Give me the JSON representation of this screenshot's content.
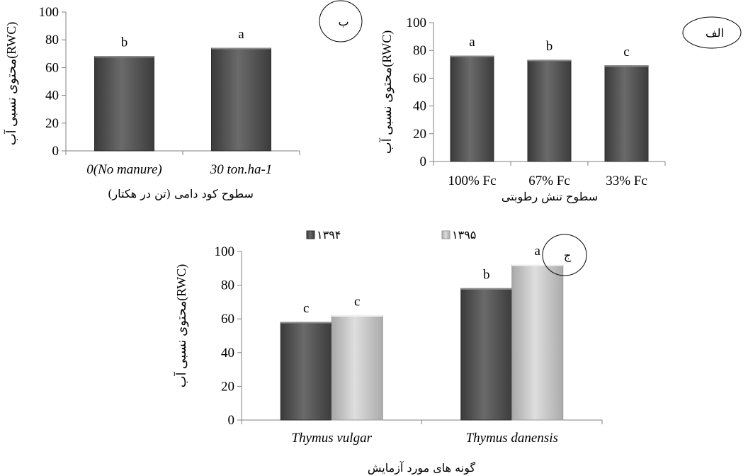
{
  "chart_data": [
    {
      "id": "b",
      "type": "bar",
      "badge": "ب",
      "categories": [
        "0(No manure)",
        "30 ton.ha-1"
      ],
      "values": [
        68,
        74
      ],
      "letters": [
        "b",
        "a"
      ],
      "xlabel": "سطوح کود دامی (تن در هکتار)",
      "ylabel": "محتوی نسبی آب(RWC)",
      "ylim": [
        0,
        100
      ],
      "yticks": [
        "0",
        "20",
        "40",
        "60",
        "80",
        "100"
      ],
      "italic_categories": true,
      "grid": false,
      "colors": [
        "#5a5a5a"
      ]
    },
    {
      "id": "alef",
      "type": "bar",
      "badge": "الف",
      "categories": [
        "100% Fc",
        "67% Fc",
        "33% Fc"
      ],
      "values": [
        76,
        73,
        69
      ],
      "letters": [
        "a",
        "b",
        "c"
      ],
      "xlabel": "سطوح تنش رطوبتی",
      "ylabel": "محتوی نسبی آب(RWC)",
      "ylim": [
        0,
        100
      ],
      "yticks": [
        "0",
        "20",
        "40",
        "60",
        "80",
        "100"
      ],
      "italic_categories": false,
      "grid": false,
      "colors": [
        "#5a5a5a"
      ]
    },
    {
      "id": "jim",
      "type": "bar",
      "badge": "ج",
      "categories": [
        "Thymus vulgar",
        "Thymus danensis"
      ],
      "series": [
        {
          "name": "۱۳۹۴",
          "values": [
            58,
            78
          ],
          "letters": [
            "c",
            "b"
          ]
        },
        {
          "name": "۱۳۹۵",
          "values": [
            62,
            92
          ],
          "letters": [
            "c",
            "a"
          ]
        }
      ],
      "xlabel": "گونه های مورد آزمایش",
      "ylabel": "محتوی نسبی آب(RWC)",
      "ylim": [
        0,
        100
      ],
      "yticks": [
        "0",
        "20",
        "40",
        "60",
        "80",
        "100"
      ],
      "italic_categories": true,
      "legend_position": "top",
      "grid": false,
      "colors": [
        "#5a5a5a",
        "#c8c8c8"
      ]
    }
  ]
}
